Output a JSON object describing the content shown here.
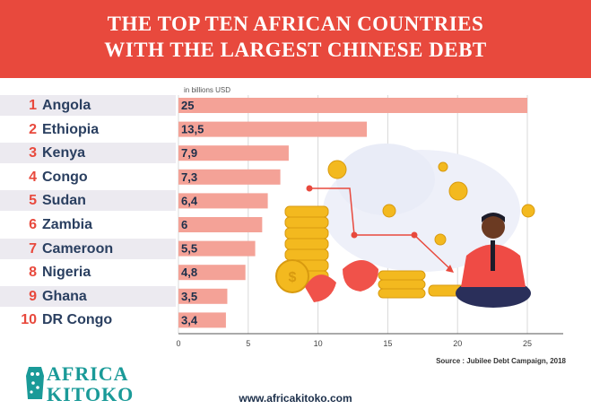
{
  "title_line1": "THE TOP TEN AFRICAN COUNTRIES",
  "title_line2": "WITH THE LARGEST CHINESE DEBT",
  "source": "Source : Jubilee Debt Campaign, 2018",
  "website": "www.africakitoko.com",
  "logo": {
    "line1": "AFRICA",
    "line2": "KITOKO"
  },
  "colors": {
    "header": "#e8493d",
    "bar": "#f4a297",
    "rank": "#e8493d",
    "country": "#2a3f60",
    "logo": "#1a9a98"
  },
  "chart_data": {
    "type": "bar",
    "orientation": "horizontal",
    "unit_label": "in billions USD",
    "categories": [
      "Angola",
      "Ethiopia",
      "Kenya",
      "Congo",
      "Sudan",
      "Zambia",
      "Cameroon",
      "Nigeria",
      "Ghana",
      "DR Congo"
    ],
    "ranks": [
      "1",
      "2",
      "3",
      "4",
      "5",
      "6",
      "7",
      "8",
      "9",
      "10"
    ],
    "values": [
      25,
      13.5,
      7.9,
      7.3,
      6.4,
      6,
      5.5,
      4.8,
      3.5,
      3.4
    ],
    "value_labels": [
      "25",
      "13,5",
      "7,9",
      "7,3",
      "6,4",
      "6",
      "5,5",
      "4,8",
      "3,5",
      "3,4"
    ],
    "xticks": [
      "0",
      "5",
      "10",
      "15",
      "20",
      "25"
    ],
    "xlim": [
      0,
      25
    ],
    "grid": true
  }
}
